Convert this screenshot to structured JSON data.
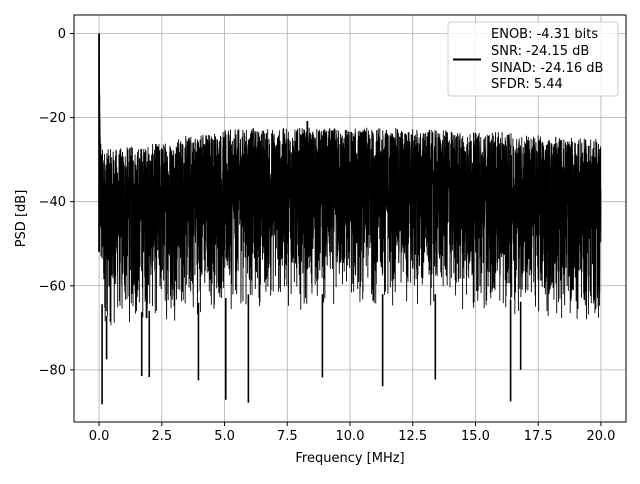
{
  "chart_data": {
    "type": "line",
    "title": "",
    "xlabel": "Frequency [MHz]",
    "ylabel": "PSD [dB]",
    "xlim": [
      -0.999,
      20.999
    ],
    "ylim": [
      -92.4,
      4.4
    ],
    "x_ticks": [
      0,
      2.5,
      5,
      7.5,
      10,
      12.5,
      15,
      17.5,
      20
    ],
    "x_tick_labels": [
      "0.0",
      "2.5",
      "5.0",
      "7.5",
      "10.0",
      "12.5",
      "15.0",
      "17.5",
      "20.0"
    ],
    "y_ticks": [
      0,
      -20,
      -40,
      -60,
      -80
    ],
    "y_tick_labels": [
      "0",
      "−20",
      "−40",
      "−60",
      "−80"
    ],
    "grid": true,
    "legend_position": "top-right",
    "legend_lines": [
      "ENOB: -4.31 bits",
      "SNR: -24.15 dB",
      "SINAD: -24.16 dB",
      "SFDR: 5.44"
    ],
    "series_color": "#000000",
    "series": [
      {
        "x_range": [
          0,
          20
        ],
        "envelope": {
          "x": [
            0,
            0.05,
            0.1,
            0.25,
            0.5,
            1,
            2,
            3,
            4,
            5,
            6,
            7,
            8,
            9,
            10,
            11,
            12,
            13,
            14,
            15,
            16,
            17,
            18,
            19,
            20
          ],
          "upper": [
            0,
            -21,
            -27,
            -27.5,
            -27.5,
            -27,
            -26.5,
            -25,
            -23.5,
            -23,
            -22.5,
            -22.5,
            -22.5,
            -22.5,
            -22.5,
            -22.5,
            -22.5,
            -23,
            -23,
            -23.5,
            -23.5,
            -24,
            -24.5,
            -25,
            -25
          ],
          "lower": [
            -62,
            -62,
            -68,
            -71,
            -72,
            -71,
            -70,
            -69,
            -68,
            -67,
            -66,
            -66,
            -66,
            -66,
            -66,
            -66,
            -66,
            -66,
            -66,
            -67,
            -67,
            -68,
            -69,
            -70,
            -71
          ]
        },
        "peaks": [
          {
            "x": 0.0,
            "y": 0
          },
          {
            "x": 8.3,
            "y": -20.8
          }
        ],
        "dips": [
          {
            "x": 0.12,
            "y": -88.2
          },
          {
            "x": 0.3,
            "y": -77.5
          },
          {
            "x": 1.7,
            "y": -81.5
          },
          {
            "x": 2.0,
            "y": -81.7
          },
          {
            "x": 3.96,
            "y": -82.5
          },
          {
            "x": 5.05,
            "y": -87.1
          },
          {
            "x": 5.95,
            "y": -87.8
          },
          {
            "x": 8.9,
            "y": -81.8
          },
          {
            "x": 11.3,
            "y": -83.9
          },
          {
            "x": 13.4,
            "y": -82.3
          },
          {
            "x": 16.4,
            "y": -87.5
          },
          {
            "x": 16.8,
            "y": -80.0
          }
        ]
      }
    ]
  }
}
